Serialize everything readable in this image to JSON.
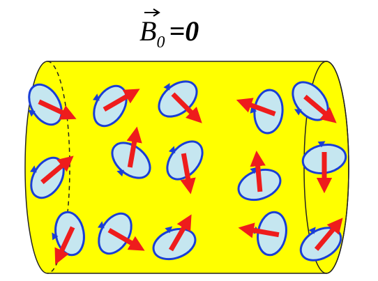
{
  "title": {
    "symbol": "B",
    "subscript": "0",
    "relation": "=0"
  }
}
